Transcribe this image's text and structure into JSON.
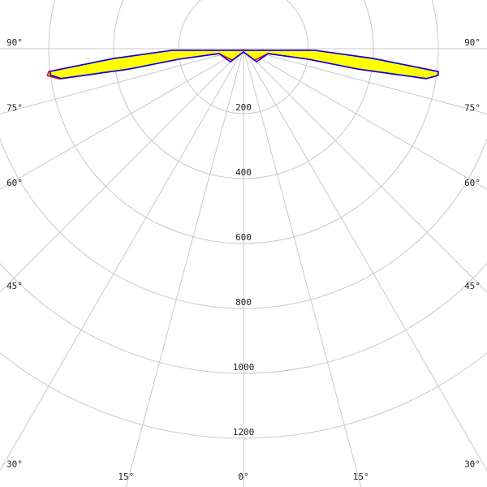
{
  "chart_data": {
    "type": "polar",
    "rlim": [
      0,
      1500
    ],
    "rticks": [
      200,
      400,
      600,
      800,
      1000,
      1200
    ],
    "angle_ticks": [
      {
        "value": -90,
        "label": "90°"
      },
      {
        "value": -75,
        "label": "75°"
      },
      {
        "value": -60,
        "label": "60°"
      },
      {
        "value": -45,
        "label": "45°"
      },
      {
        "value": -30,
        "label": "30°"
      },
      {
        "value": -15,
        "label": "15°"
      },
      {
        "value": 0,
        "label": "0°"
      },
      {
        "value": 15,
        "label": "15°"
      },
      {
        "value": 30,
        "label": "30°"
      },
      {
        "value": 45,
        "label": "45°"
      },
      {
        "value": 60,
        "label": "60°"
      },
      {
        "value": 75,
        "label": "75°"
      },
      {
        "value": 90,
        "label": "90°"
      }
    ],
    "grid": true,
    "series": [
      {
        "color": "#ff0000",
        "fill": "#ffff00",
        "angles": [
          -88.7,
          -85.7,
          -83.3,
          -82.2,
          -80.7,
          -79.9,
          -80.8,
          -78.7,
          -45,
          0,
          45,
          78.7,
          80.8,
          79.9,
          80.7,
          82.2,
          83.3,
          85.7,
          88.7
        ],
        "values": [
          220,
          401,
          604,
          610,
          575,
          355,
          203,
          77,
          50,
          10,
          50,
          77,
          203,
          355,
          570,
          605,
          604,
          401,
          220
        ]
      },
      {
        "color": "#0000ff",
        "angles": [
          -88.7,
          -85.7,
          -83.3,
          -82.2,
          -80.7,
          -79.9,
          -80.8,
          -78.7,
          -45,
          0,
          45,
          78.7,
          80.8,
          79.9,
          80.7,
          82.2,
          83.3,
          85.7,
          88.7
        ],
        "values": [
          220,
          401,
          600,
          600,
          568,
          355,
          203,
          77,
          57,
          10,
          57,
          77,
          203,
          355,
          570,
          605,
          604,
          401,
          220
        ]
      }
    ]
  }
}
